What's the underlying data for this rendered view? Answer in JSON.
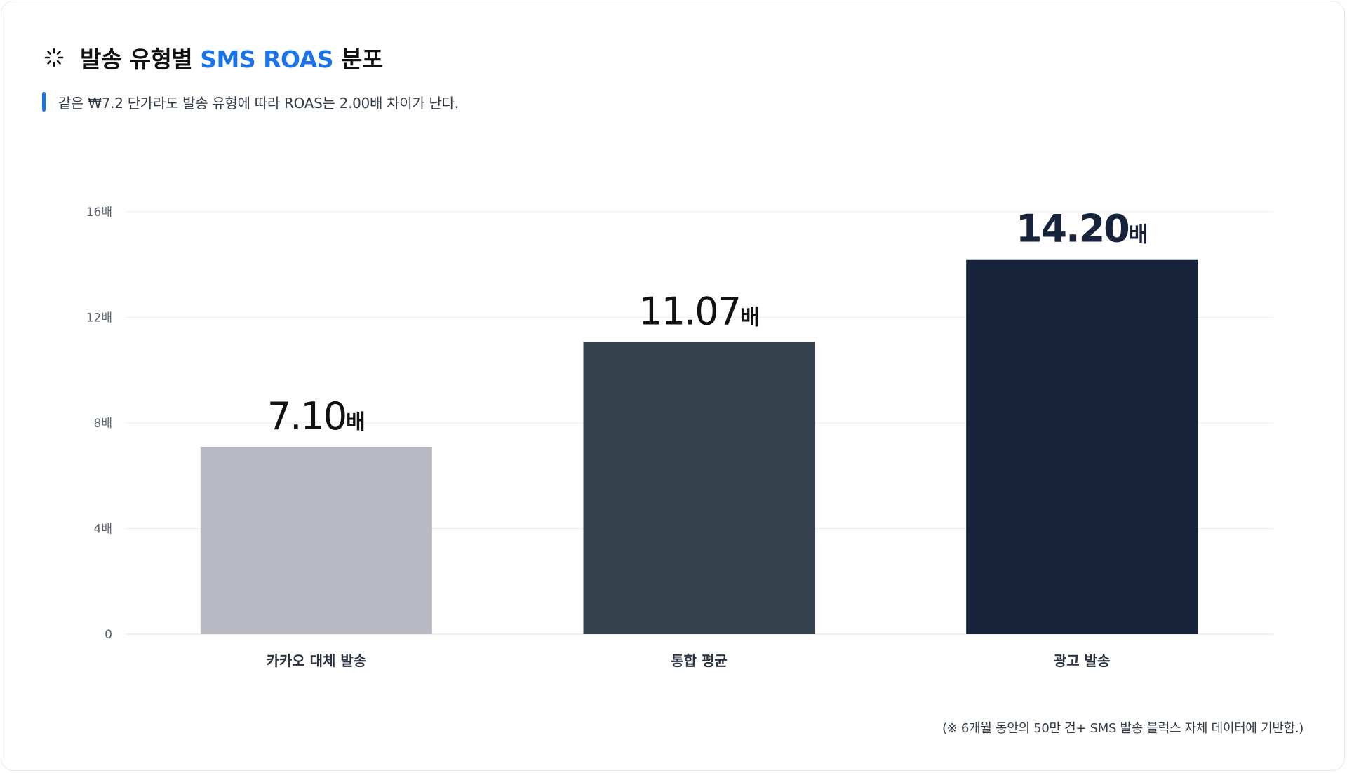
{
  "header": {
    "title_prefix": "발송 유형별 ",
    "title_accent": "SMS ROAS",
    "title_suffix": " 분포",
    "subtitle": "같은 ₩7.2 단가라도 발송 유형에 따라 ROAS는 2.00배 차이가 난다.",
    "icon": "loading-spinner-icon"
  },
  "footnote": "(※ 6개월 동안의 50만 건+ SMS 발송 블럭스 자체 데이터에 기반함.)",
  "colors": {
    "accent": "#1a73e8",
    "bar_light": "#b8b9c2",
    "bar_mid": "#37424f",
    "bar_dark": "#17233a"
  },
  "chart_data": {
    "type": "bar",
    "categories": [
      "카카오 대체 발송",
      "통합 평균",
      "광고 발송"
    ],
    "values": [
      7.1,
      11.07,
      14.2
    ],
    "value_labels": [
      "7.10",
      "11.07",
      "14.20"
    ],
    "value_unit": "배",
    "bar_colors": [
      "#b8b9c2",
      "#37424f",
      "#17233a"
    ],
    "ylim": [
      0,
      16
    ],
    "yticks": [
      0,
      4,
      8,
      12,
      16
    ],
    "ytick_labels": [
      "0",
      "4배",
      "8배",
      "12배",
      "16배"
    ],
    "grid": true,
    "title": "",
    "xlabel": "",
    "ylabel": ""
  }
}
